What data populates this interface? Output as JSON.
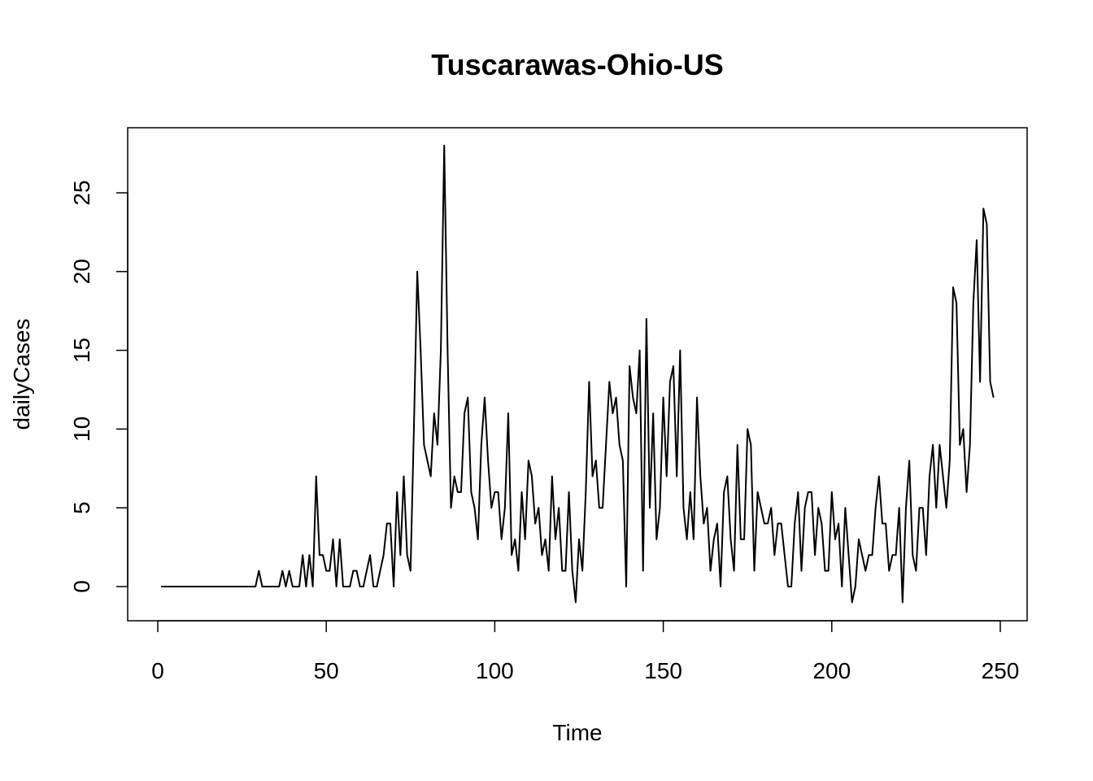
{
  "chart_data": {
    "type": "line",
    "title": "Tuscarawas-Ohio-US",
    "xlabel": "Time",
    "ylabel": "dailyCases",
    "xlim": [
      1,
      248
    ],
    "ylim": [
      -1,
      28
    ],
    "x_ticks": [
      0,
      50,
      100,
      150,
      200,
      250
    ],
    "y_ticks": [
      0,
      5,
      10,
      15,
      20,
      25
    ],
    "grid": false,
    "legend": "none",
    "line_color": "#000000",
    "x_start": 1,
    "series": [
      {
        "values": [
          0,
          0,
          0,
          0,
          0,
          0,
          0,
          0,
          0,
          0,
          0,
          0,
          0,
          0,
          0,
          0,
          0,
          0,
          0,
          0,
          0,
          0,
          0,
          0,
          0,
          0,
          0,
          0,
          0,
          1,
          0,
          0,
          0,
          0,
          0,
          0,
          1,
          0,
          1,
          0,
          0,
          0,
          2,
          0,
          2,
          0,
          7,
          2,
          2,
          1,
          1,
          3,
          0,
          3,
          0,
          0,
          0,
          1,
          1,
          0,
          0,
          1,
          2,
          0,
          0,
          1,
          2,
          4,
          4,
          0,
          6,
          2,
          7,
          2,
          1,
          10,
          20,
          15,
          9,
          8,
          7,
          11,
          9,
          15,
          28,
          15,
          5,
          7,
          6,
          6,
          11,
          12,
          6,
          5,
          3,
          9,
          12,
          8,
          5,
          6,
          6,
          3,
          5,
          11,
          2,
          3,
          1,
          6,
          3,
          8,
          7,
          4,
          5,
          2,
          3,
          1,
          7,
          3,
          5,
          1,
          1,
          6,
          1,
          -1,
          3,
          1,
          6,
          13,
          7,
          8,
          5,
          5,
          9,
          13,
          11,
          12,
          9,
          8,
          0,
          14,
          12,
          11,
          15,
          1,
          17,
          5,
          11,
          3,
          5,
          12,
          7,
          13,
          14,
          7,
          15,
          5,
          3,
          6,
          3,
          12,
          7,
          4,
          5,
          1,
          3,
          4,
          0,
          6,
          7,
          3,
          1,
          9,
          3,
          3,
          10,
          9,
          1,
          6,
          5,
          4,
          4,
          5,
          2,
          4,
          4,
          2,
          0,
          0,
          4,
          6,
          1,
          5,
          6,
          6,
          2,
          5,
          4,
          1,
          1,
          6,
          3,
          4,
          0,
          5,
          2,
          -1,
          0,
          3,
          2,
          1,
          2,
          2,
          5,
          7,
          4,
          4,
          1,
          2,
          2,
          5,
          -1,
          5,
          8,
          2,
          1,
          5,
          5,
          2,
          7,
          9,
          5,
          9,
          7,
          5,
          8,
          19,
          18,
          9,
          10,
          6,
          9,
          18,
          22,
          13,
          24,
          23,
          13,
          12
        ]
      }
    ]
  }
}
